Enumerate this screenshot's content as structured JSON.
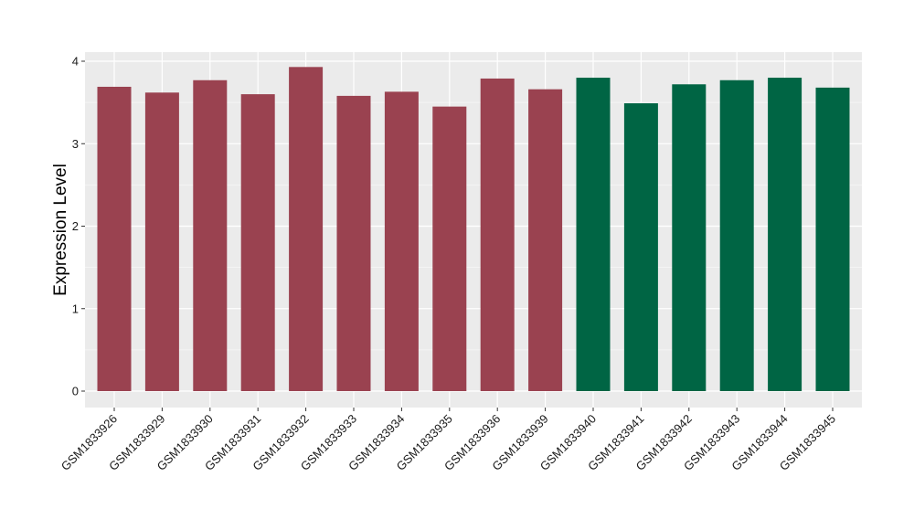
{
  "chart_data": {
    "type": "bar",
    "title": "",
    "xlabel": "",
    "ylabel": "Expression Level",
    "ylim": [
      0,
      4.1
    ],
    "yticks": [
      0,
      1,
      2,
      3,
      4
    ],
    "grid": true,
    "legend": "none",
    "panel_background": "#ebebeb",
    "categories": [
      "GSM1833926",
      "GSM1833929",
      "GSM1833930",
      "GSM1833931",
      "GSM1833932",
      "GSM1833933",
      "GSM1833934",
      "GSM1833935",
      "GSM1833936",
      "GSM1833939",
      "GSM1833940",
      "GSM1833941",
      "GSM1833942",
      "GSM1833943",
      "GSM1833944",
      "GSM1833945"
    ],
    "values": [
      3.69,
      3.62,
      3.77,
      3.6,
      3.93,
      3.58,
      3.63,
      3.45,
      3.79,
      3.66,
      3.8,
      3.49,
      3.72,
      3.77,
      3.8,
      3.68
    ],
    "bar_colors": [
      "#9a4250",
      "#9a4250",
      "#9a4250",
      "#9a4250",
      "#9a4250",
      "#9a4250",
      "#9a4250",
      "#9a4250",
      "#9a4250",
      "#9a4250",
      "#006544",
      "#006544",
      "#006544",
      "#006544",
      "#006544",
      "#006544"
    ]
  }
}
